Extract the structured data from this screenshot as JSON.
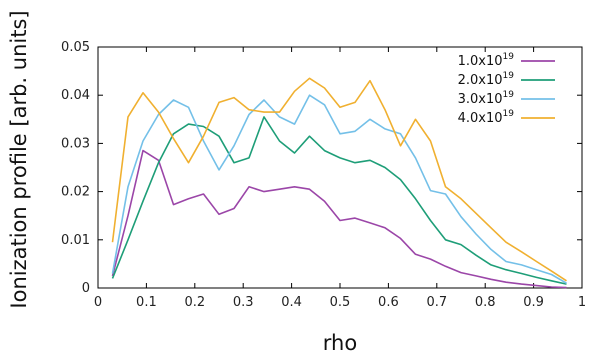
{
  "chart_data": {
    "type": "line",
    "title": "",
    "xlabel": "rho",
    "ylabel": "Ionization profile [arb. units]",
    "xlim": [
      0,
      1
    ],
    "ylim": [
      0,
      0.05
    ],
    "xticks": [
      "0",
      "0.1",
      "0.2",
      "0.3",
      "0.4",
      "0.5",
      "0.6",
      "0.7",
      "0.8",
      "0.9",
      "1"
    ],
    "yticks": [
      "0",
      "0.01",
      "0.02",
      "0.03",
      "0.04",
      "0.05"
    ],
    "grid": false,
    "legend_position": "top-right",
    "x": [
      0.03,
      0.062,
      0.093,
      0.125,
      0.156,
      0.187,
      0.218,
      0.25,
      0.281,
      0.312,
      0.343,
      0.375,
      0.406,
      0.437,
      0.468,
      0.5,
      0.531,
      0.562,
      0.593,
      0.625,
      0.656,
      0.687,
      0.718,
      0.75,
      0.781,
      0.812,
      0.843,
      0.875,
      0.906,
      0.937,
      0.968
    ],
    "series": [
      {
        "name": "1.0x10^19",
        "label_base": "1.0x10",
        "label_exp": "19",
        "color": "#9b46a8",
        "values": [
          0.0025,
          0.015,
          0.0285,
          0.0265,
          0.0173,
          0.0185,
          0.0195,
          0.0153,
          0.0165,
          0.021,
          0.02,
          0.0205,
          0.021,
          0.0205,
          0.018,
          0.014,
          0.0145,
          0.0135,
          0.0125,
          0.0103,
          0.007,
          0.006,
          0.0045,
          0.0032,
          0.0025,
          0.0018,
          0.0012,
          0.0008,
          0.0005,
          0.0002,
          0.0001
        ]
      },
      {
        "name": "2.0x10^19",
        "label_base": "2.0x10",
        "label_exp": "19",
        "color": "#1e9e78",
        "values": [
          0.002,
          0.01,
          0.018,
          0.026,
          0.032,
          0.034,
          0.0335,
          0.0315,
          0.026,
          0.027,
          0.0355,
          0.0305,
          0.028,
          0.0315,
          0.0285,
          0.027,
          0.026,
          0.0265,
          0.025,
          0.0225,
          0.0185,
          0.014,
          0.01,
          0.009,
          0.0068,
          0.0048,
          0.0038,
          0.003,
          0.0022,
          0.0015,
          0.0008
        ]
      },
      {
        "name": "3.0x10^19",
        "label_base": "3.0x10",
        "label_exp": "19",
        "color": "#74c0e8",
        "values": [
          0.003,
          0.021,
          0.0305,
          0.036,
          0.039,
          0.0375,
          0.0305,
          0.0245,
          0.0295,
          0.036,
          0.039,
          0.0355,
          0.034,
          0.04,
          0.038,
          0.032,
          0.0325,
          0.035,
          0.033,
          0.032,
          0.027,
          0.0202,
          0.0195,
          0.0148,
          0.0112,
          0.008,
          0.0055,
          0.0048,
          0.0038,
          0.0028,
          0.001
        ]
      },
      {
        "name": "4.0x10^19",
        "label_base": "4.0x10",
        "label_exp": "19",
        "color": "#f0b030",
        "values": [
          0.0095,
          0.0355,
          0.0405,
          0.0365,
          0.031,
          0.026,
          0.0315,
          0.0385,
          0.0395,
          0.037,
          0.0365,
          0.0365,
          0.0408,
          0.0435,
          0.0415,
          0.0375,
          0.0385,
          0.043,
          0.037,
          0.0295,
          0.035,
          0.0305,
          0.021,
          0.0185,
          0.0155,
          0.0125,
          0.0095,
          0.0075,
          0.0055,
          0.0035,
          0.0015
        ]
      }
    ]
  }
}
